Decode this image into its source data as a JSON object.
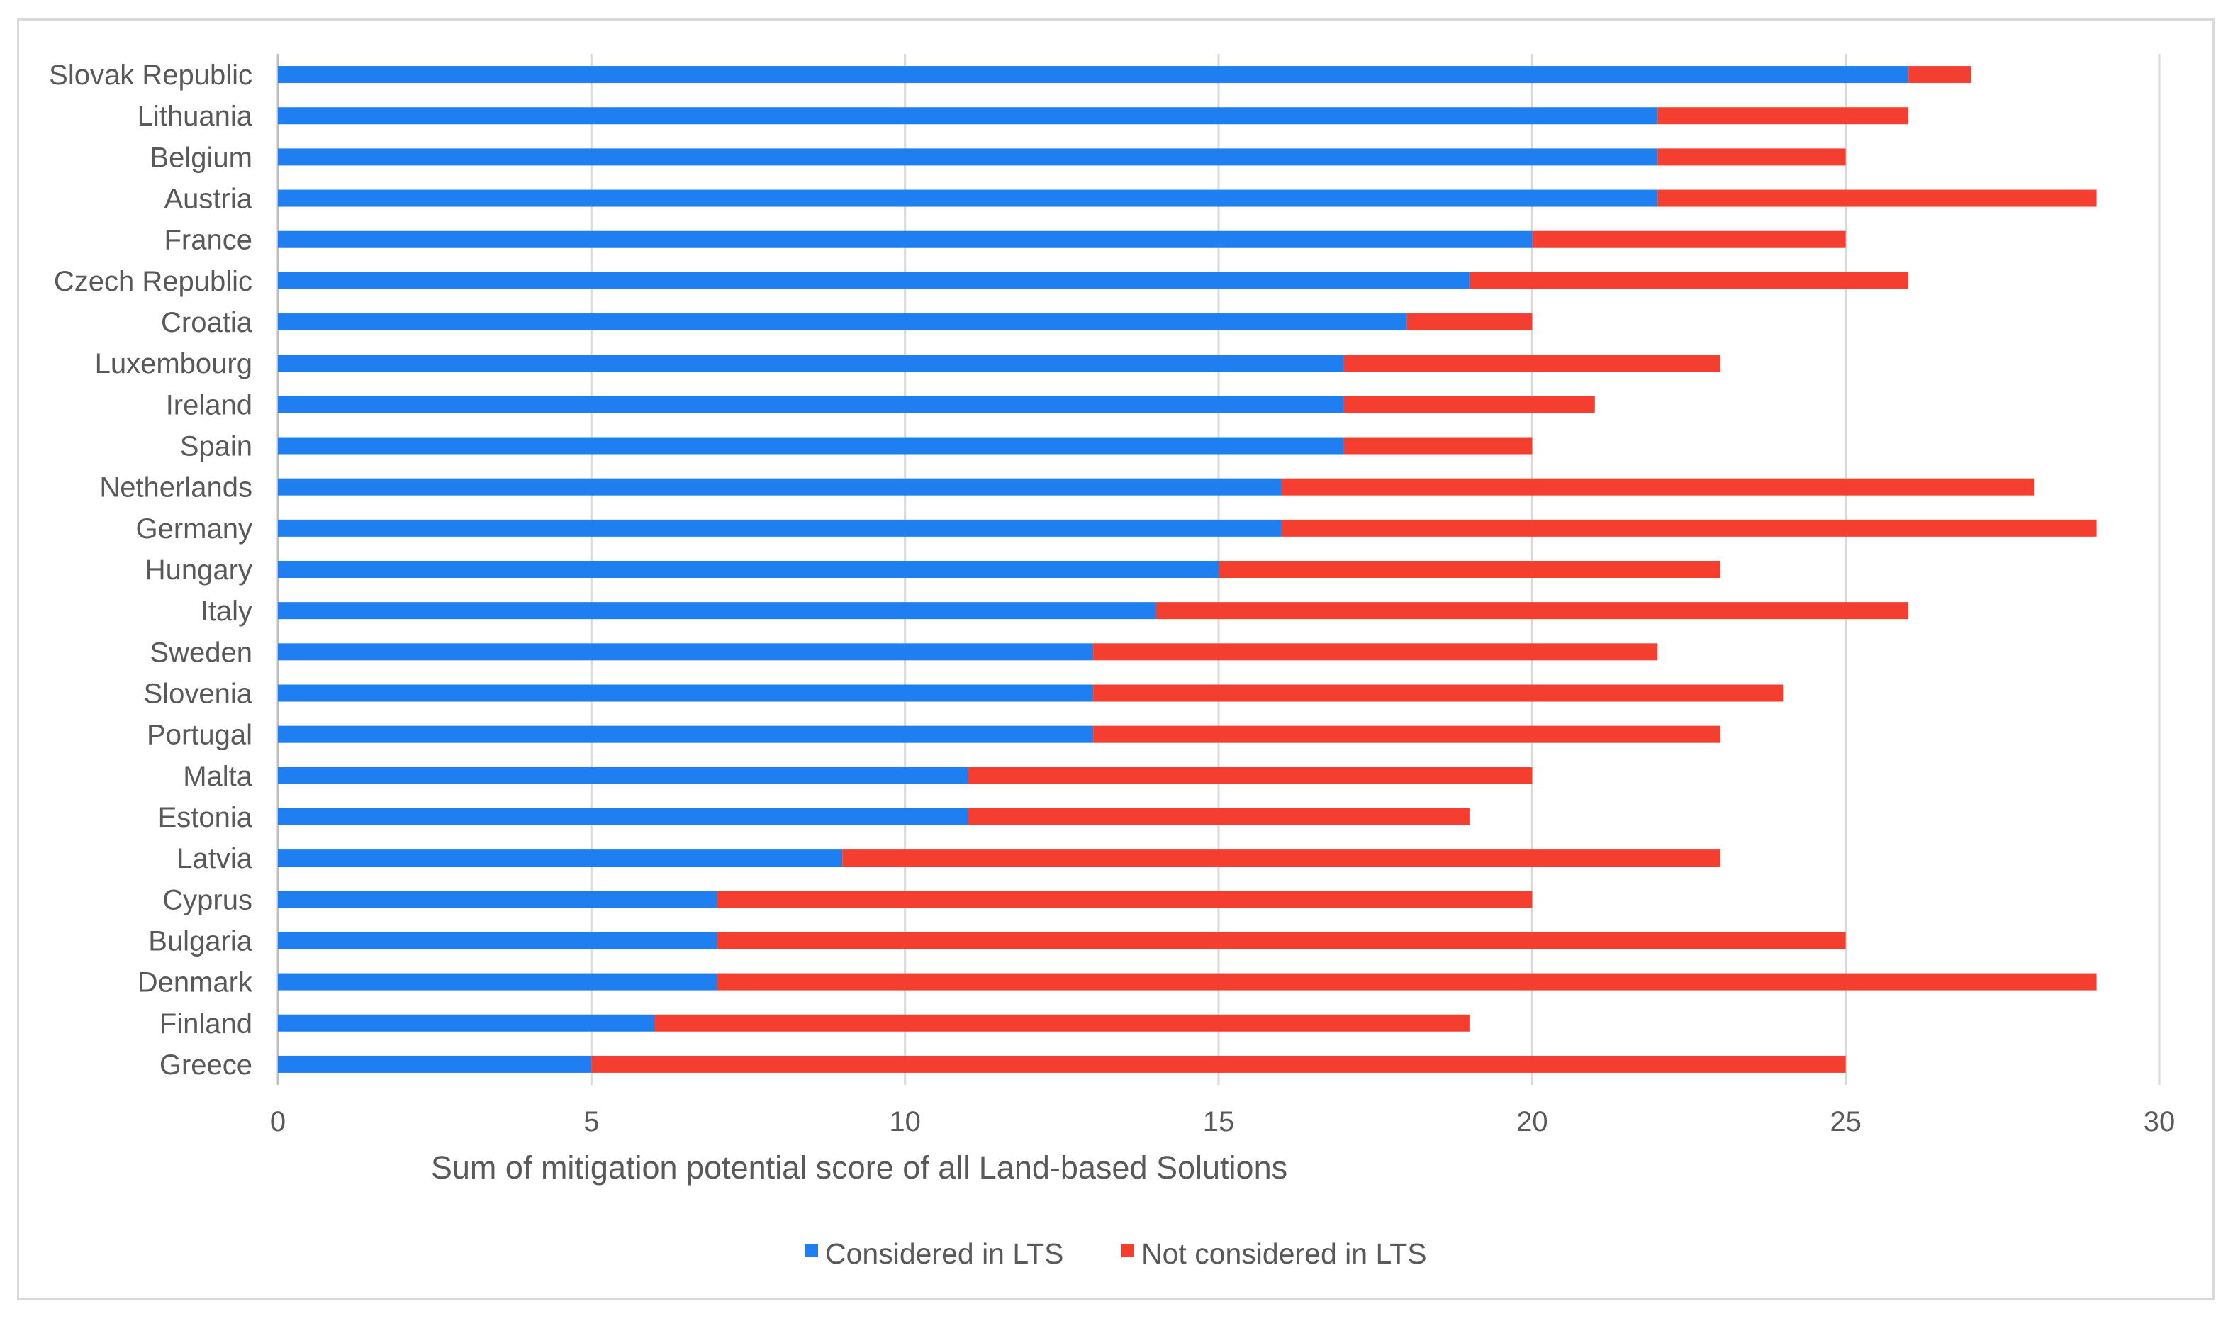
{
  "chart_data": {
    "type": "bar",
    "orientation": "horizontal",
    "stacked": true,
    "title": "",
    "xlabel": "Sum of mitigation potential score of all Land-based Solutions",
    "ylabel": "",
    "xlim": [
      0,
      30
    ],
    "x_ticks": [
      0,
      5,
      10,
      15,
      20,
      25,
      30
    ],
    "grid": "vertical",
    "legend_position": "bottom",
    "categories": [
      "Slovak Republic",
      "Lithuania",
      "Belgium",
      "Austria",
      "France",
      "Czech Republic",
      "Croatia",
      "Luxembourg",
      "Ireland",
      "Spain",
      "Netherlands",
      "Germany",
      "Hungary",
      "Italy",
      "Sweden",
      "Slovenia",
      "Portugal",
      "Malta",
      "Estonia",
      "Latvia",
      "Cyprus",
      "Bulgaria",
      "Denmark",
      "Finland",
      "Greece"
    ],
    "series": [
      {
        "name": "Considered in LTS",
        "color": "#1f7ff0",
        "values": [
          26,
          22,
          22,
          22,
          20,
          19,
          18,
          17,
          17,
          17,
          16,
          16,
          15,
          14,
          13,
          13,
          13,
          11,
          11,
          9,
          7,
          7,
          7,
          6,
          5
        ]
      },
      {
        "name": "Not considered in LTS",
        "color": "#f43e2f",
        "values": [
          1,
          4,
          3,
          7,
          5,
          7,
          2,
          6,
          4,
          3,
          12,
          13,
          8,
          12,
          9,
          11,
          10,
          9,
          8,
          14,
          13,
          18,
          22,
          13,
          20
        ]
      }
    ]
  },
  "colors": {
    "grid": "#d9d9d9",
    "axis": "#bfbfbf",
    "text": "#595959",
    "border": "#d9d9d9"
  }
}
